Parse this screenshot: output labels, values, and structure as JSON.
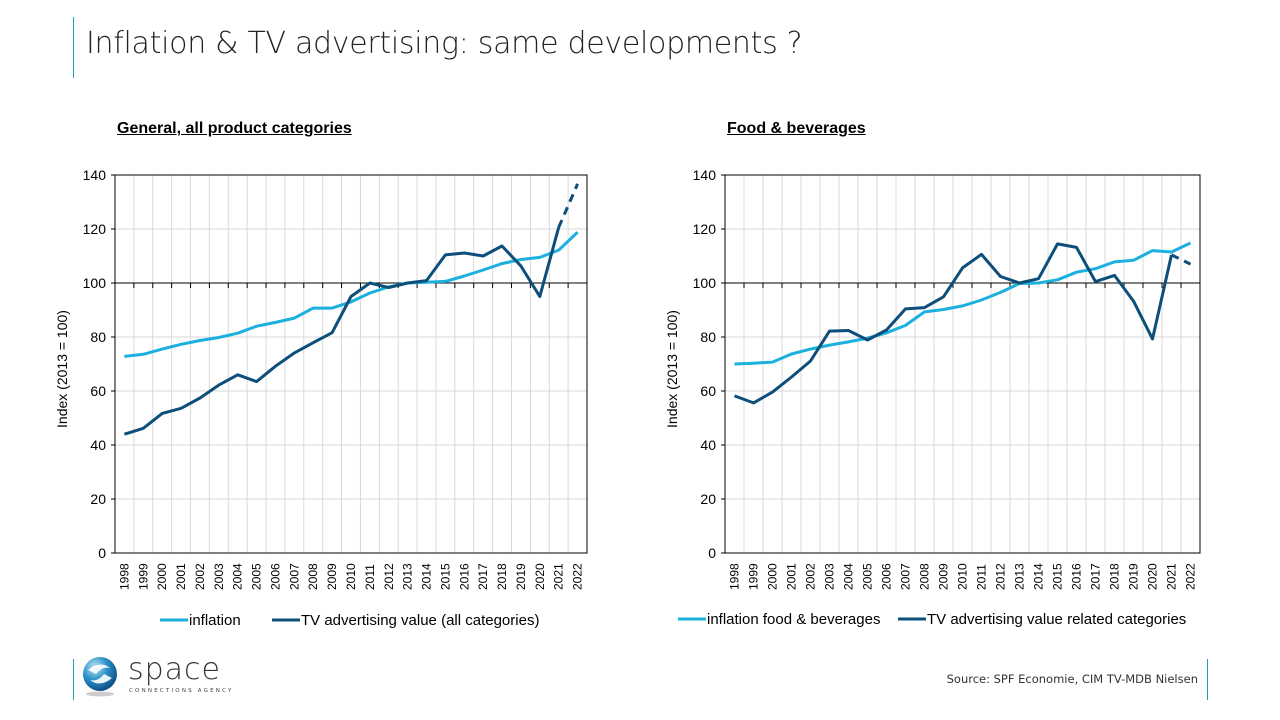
{
  "slide": {
    "title": "Inflation & TV advertising: same developments ?",
    "source": "Source: SPF Economie, CIM TV-MDB Nielsen",
    "logo": {
      "word": "space",
      "tagline": "CONNECTIONS AGENCY",
      "icon": "globe-swirl-icon"
    },
    "colors": {
      "accent": "#1ba3b5",
      "inflation": "#1bb0dd",
      "tv": "#0d4f7a",
      "grid": "#d9d9d9"
    }
  },
  "chart_data": [
    {
      "type": "line",
      "title": "General, all product categories",
      "xlabel": "",
      "ylabel": "Index  (2013 = 100)",
      "ylim": [
        0,
        140
      ],
      "yticks": [
        0,
        20,
        40,
        60,
        80,
        100,
        120,
        140
      ],
      "grid": true,
      "legend": "bottom",
      "categories": [
        "1998",
        "1999",
        "2000",
        "2001",
        "2002",
        "2003",
        "2004",
        "2005",
        "2006",
        "2007",
        "2008",
        "2009",
        "2010",
        "2011",
        "2012",
        "2013",
        "2014",
        "2015",
        "2016",
        "2017",
        "2018",
        "2019",
        "2020",
        "2021",
        "2022"
      ],
      "series": [
        {
          "name": "inflation",
          "color": "#1bb0dd",
          "values": [
            72.8,
            73.6,
            75.5,
            77.3,
            78.7,
            79.8,
            81.4,
            84.0,
            85.4,
            87.0,
            90.7,
            90.7,
            93.0,
            96.3,
            98.6,
            100.0,
            100.3,
            100.6,
            102.6,
            104.8,
            107.2,
            108.7,
            109.5,
            112.2,
            118.8
          ]
        },
        {
          "name": "TV advertising value (all categories)",
          "color": "#0d4f7a",
          "values": [
            44.0,
            46.2,
            51.7,
            53.6,
            57.4,
            62.2,
            66.0,
            63.5,
            69.2,
            74.1,
            77.9,
            81.6,
            95.0,
            100.0,
            98.3,
            100.0,
            100.9,
            110.4,
            111.1,
            110.0,
            113.7,
            106.3,
            95.0,
            120.6,
            136.7
          ],
          "dashed_from": "2021"
        }
      ]
    },
    {
      "type": "line",
      "title": "Food & beverages",
      "xlabel": "",
      "ylabel": "Index  (2013 = 100)",
      "ylim": [
        0,
        140
      ],
      "yticks": [
        0,
        20,
        40,
        60,
        80,
        100,
        120,
        140
      ],
      "grid": true,
      "legend": "bottom",
      "categories": [
        "1998",
        "1999",
        "2000",
        "2001",
        "2002",
        "2003",
        "2004",
        "2005",
        "2006",
        "2007",
        "2008",
        "2009",
        "2010",
        "2011",
        "2012",
        "2013",
        "2014",
        "2015",
        "2016",
        "2017",
        "2018",
        "2019",
        "2020",
        "2021",
        "2022"
      ],
      "series": [
        {
          "name": "inflation food & beverages",
          "color": "#1bb0dd",
          "values": [
            70.0,
            70.3,
            70.7,
            73.7,
            75.5,
            77.0,
            78.2,
            79.6,
            81.5,
            84.3,
            89.3,
            90.2,
            91.5,
            93.7,
            96.5,
            99.8,
            100.0,
            101.2,
            104.0,
            105.3,
            107.8,
            108.4,
            112.0,
            111.5,
            114.8
          ]
        },
        {
          "name": "TV advertising value related categories",
          "color": "#0d4f7a",
          "values": [
            58.2,
            55.6,
            59.6,
            65.2,
            71.1,
            82.2,
            82.4,
            78.9,
            82.6,
            90.4,
            90.9,
            94.9,
            105.6,
            110.6,
            102.4,
            100.0,
            101.6,
            114.5,
            113.2,
            100.5,
            102.8,
            93.3,
            79.3,
            110.4,
            107.0
          ],
          "dashed_from": "2021"
        }
      ]
    }
  ]
}
